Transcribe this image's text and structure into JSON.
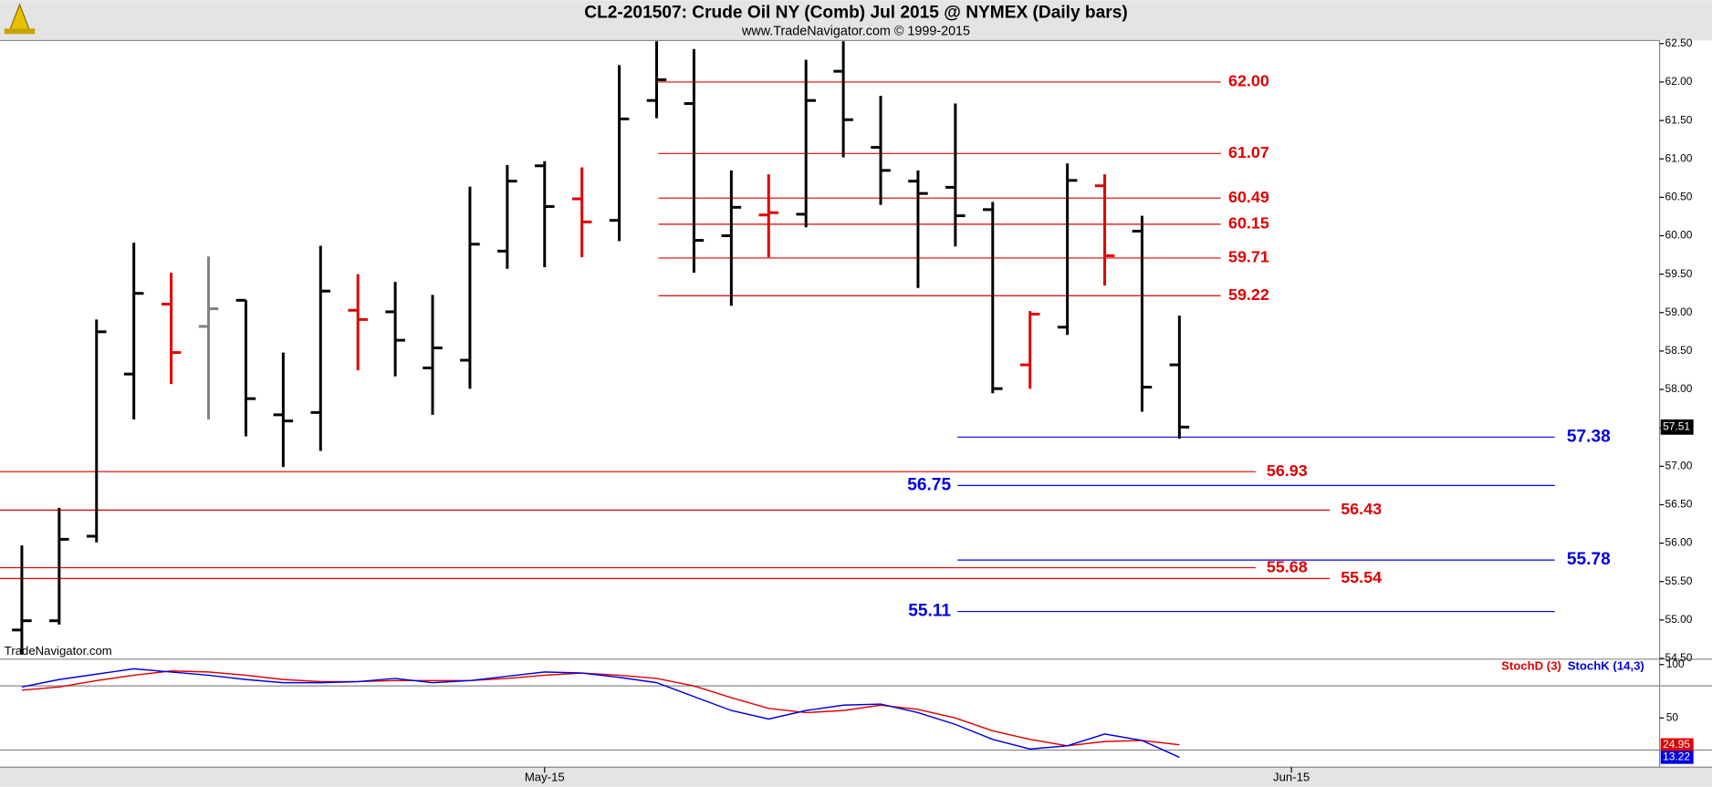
{
  "chart_data": [
    {
      "type": "ohlc",
      "title": "CL2-201507:  Crude Oil NY (Comb) Jul 2015 @ NYMEX  (Daily bars)",
      "subtitle": "www.TradeNavigator.com © 1999-2015",
      "watermark": "TradeNavigator.com",
      "x": [
        0,
        1,
        2,
        3,
        4,
        5,
        6,
        7,
        8,
        9,
        10,
        11,
        12,
        13,
        14,
        15,
        16,
        17,
        18,
        19,
        20,
        21,
        22,
        23,
        24,
        25,
        26,
        27,
        28,
        29,
        30,
        31
      ],
      "open": [
        54.87,
        54.99,
        56.09,
        58.2,
        59.11,
        58.82,
        59.16,
        57.67,
        57.7,
        59.03,
        59.01,
        58.28,
        58.38,
        59.8,
        60.91,
        60.48,
        60.2,
        61.76,
        61.72,
        60.0,
        60.27,
        60.28,
        62.14,
        61.15,
        60.71,
        60.63,
        60.34,
        58.32,
        58.81,
        60.65,
        60.06,
        58.32
      ],
      "high": [
        55.97,
        56.46,
        58.91,
        59.91,
        59.52,
        59.73,
        59.16,
        58.48,
        59.87,
        59.5,
        59.4,
        59.23,
        60.64,
        60.92,
        60.97,
        60.89,
        62.22,
        62.53,
        62.43,
        60.85,
        60.8,
        62.29,
        62.53,
        61.82,
        60.85,
        61.72,
        60.44,
        59.02,
        60.94,
        60.8,
        60.26,
        58.96
      ],
      "low": [
        54.55,
        54.94,
        56.01,
        57.61,
        58.07,
        57.61,
        57.39,
        56.99,
        57.2,
        58.25,
        58.17,
        57.67,
        58.01,
        59.57,
        59.59,
        59.72,
        59.93,
        61.53,
        59.52,
        59.09,
        59.72,
        60.11,
        61.02,
        60.4,
        59.32,
        59.86,
        57.95,
        58.01,
        58.71,
        59.35,
        57.71,
        57.36
      ],
      "close": [
        54.99,
        56.05,
        58.75,
        59.25,
        58.48,
        59.05,
        57.88,
        57.59,
        59.28,
        58.91,
        58.64,
        58.54,
        59.89,
        60.71,
        60.38,
        60.18,
        61.52,
        62.03,
        59.94,
        60.37,
        60.3,
        61.76,
        61.51,
        60.85,
        60.55,
        60.26,
        58.01,
        58.98,
        60.72,
        59.74,
        58.03,
        57.51
      ],
      "colors": [
        "#000000",
        "#000000",
        "#000000",
        "#000000",
        "#e00000",
        "#808080",
        "#000000",
        "#000000",
        "#000000",
        "#e00000",
        "#000000",
        "#000000",
        "#000000",
        "#000000",
        "#000000",
        "#e00000",
        "#000000",
        "#000000",
        "#000000",
        "#000000",
        "#e00000",
        "#000000",
        "#000000",
        "#000000",
        "#000000",
        "#000000",
        "#000000",
        "#e00000",
        "#000000",
        "#e00000",
        "#000000",
        "#000000"
      ],
      "xlim": [
        -0.585,
        43.86
      ],
      "xticks": [
        {
          "value": 14,
          "label": "May-15"
        },
        {
          "value": 34,
          "label": "Jun-15"
        }
      ],
      "ylim": [
        54.49,
        62.54
      ],
      "yticks": [
        {
          "value": 62.5,
          "label": "62.50"
        },
        {
          "value": 62,
          "label": "62.00"
        },
        {
          "value": 61.5,
          "label": "61.50"
        },
        {
          "value": 61,
          "label": "61.00"
        },
        {
          "value": 60.5,
          "label": "60.50"
        },
        {
          "value": 60,
          "label": "60.00"
        },
        {
          "value": 59.5,
          "label": "59.50"
        },
        {
          "value": 59,
          "label": "59.00"
        },
        {
          "value": 58.5,
          "label": "58.50"
        },
        {
          "value": 58,
          "label": "58.00"
        },
        {
          "value": 57.5,
          "label": "57.50"
        },
        {
          "value": 57,
          "label": "57.00"
        },
        {
          "value": 56.5,
          "label": "56.50"
        },
        {
          "value": 56,
          "label": "56.00"
        },
        {
          "value": 55.5,
          "label": "55.50"
        },
        {
          "value": 55,
          "label": "55.00"
        },
        {
          "value": 54.5,
          "label": "54.50"
        }
      ],
      "levels": [
        {
          "value": 62,
          "label": "62.00",
          "color": "#e00000"
        },
        {
          "value": 61.07,
          "label": "61.07",
          "color": "#e00000"
        },
        {
          "value": 60.49,
          "label": "60.49",
          "color": "#e00000"
        },
        {
          "value": 60.15,
          "label": "60.15",
          "color": "#e00000"
        },
        {
          "value": 59.71,
          "label": "59.71",
          "color": "#e00000"
        },
        {
          "value": 59.22,
          "label": "59.22",
          "color": "#e00000"
        },
        {
          "value": 56.93,
          "label": "56.93",
          "color": "#e00000"
        },
        {
          "value": 56.43,
          "label": "56.43",
          "color": "#e00000"
        },
        {
          "value": 55.68,
          "label": "55.68",
          "color": "#e00000"
        },
        {
          "value": 55.54,
          "label": "55.54",
          "color": "#e00000"
        },
        {
          "value": 57.38,
          "label": "57.38",
          "color": "#0000e0"
        },
        {
          "value": 56.75,
          "label": "56.75",
          "color": "#0000e0"
        },
        {
          "value": 55.78,
          "label": "55.78",
          "color": "#0000e0"
        },
        {
          "value": 55.11,
          "label": "55.11",
          "color": "#0000e0"
        }
      ]
    },
    {
      "type": "line",
      "x": [
        0,
        1,
        2,
        3,
        4,
        5,
        6,
        7,
        8,
        9,
        10,
        11,
        12,
        13,
        14,
        15,
        16,
        17,
        18,
        19,
        20,
        21,
        22,
        23,
        24,
        25,
        26,
        27,
        28,
        29,
        30,
        31
      ],
      "series": [
        {
          "name": "StochD (3)",
          "color": "#e00000",
          "values": [
            76,
            79,
            85,
            90,
            94,
            93,
            90,
            86,
            84,
            84,
            85,
            85,
            85,
            87,
            90,
            92,
            90,
            87,
            80,
            69,
            59,
            55,
            57,
            62,
            58,
            50,
            38,
            30,
            24,
            28,
            29,
            24.95
          ]
        },
        {
          "name": "StochK (14,3)",
          "color": "#0000e0",
          "values": [
            79,
            86,
            91,
            96,
            93,
            90,
            86,
            83,
            83,
            84,
            87,
            83,
            85,
            89,
            93,
            92,
            88,
            83,
            70,
            57,
            49,
            57,
            62,
            63,
            55,
            44,
            30,
            21,
            24,
            35,
            29,
            13.22
          ]
        }
      ],
      "xlim": [
        -0.585,
        43.86
      ],
      "ylim": [
        4,
        105
      ],
      "yticks": [
        100,
        50
      ],
      "levels": [
        80,
        20
      ]
    }
  ]
}
